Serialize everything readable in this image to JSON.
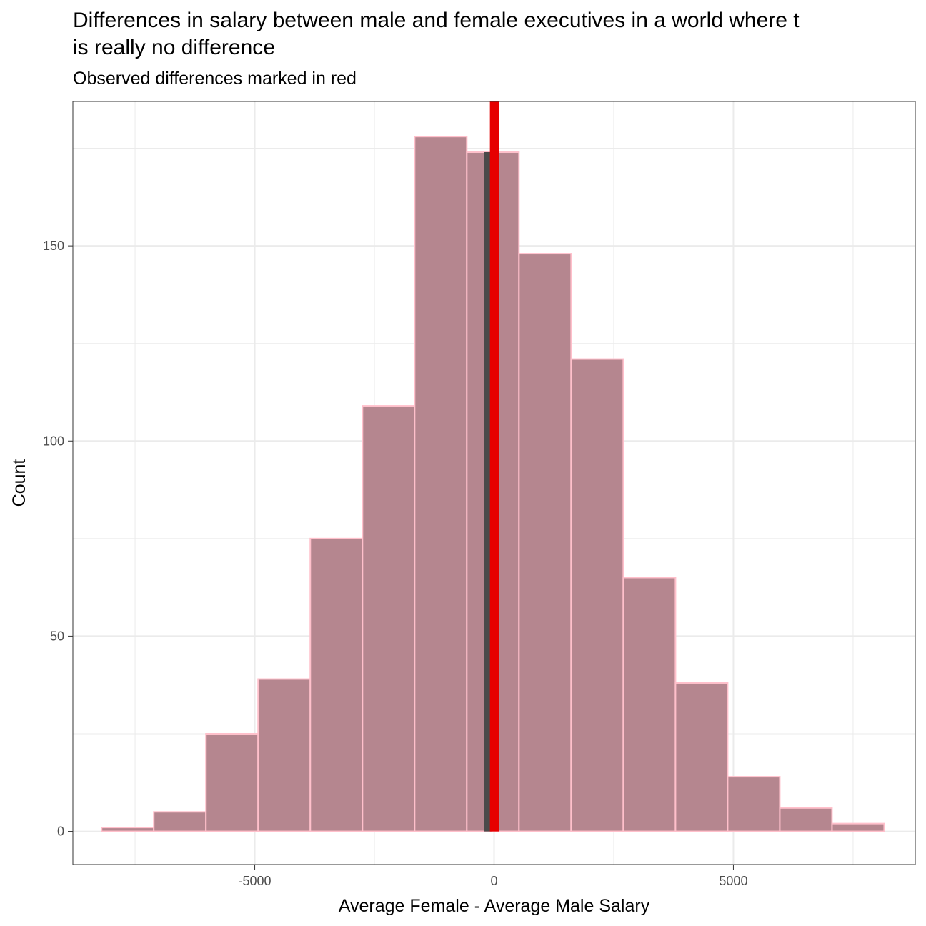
{
  "chart_data": {
    "type": "bar",
    "title_lines": [
      "Differences in salary between male and female executives in a world where t",
      "is really no difference"
    ],
    "subtitle": "Observed differences marked in red",
    "xlabel": "Average Female - Average Male Salary",
    "ylabel": "Count",
    "xlim": [
      -8800,
      8800
    ],
    "ylim": [
      -8.5,
      187
    ],
    "x_ticks": [
      {
        "value": -5000,
        "label": "-5000"
      },
      {
        "value": 0,
        "label": "0"
      },
      {
        "value": 5000,
        "label": "5000"
      }
    ],
    "y_ticks": [
      {
        "value": 0,
        "label": "0"
      },
      {
        "value": 50,
        "label": "50"
      },
      {
        "value": 100,
        "label": "100"
      },
      {
        "value": 150,
        "label": "150"
      }
    ],
    "x_minor": [
      -7500,
      -2500,
      2500,
      7500
    ],
    "y_minor": [
      25,
      75,
      125,
      175
    ],
    "bins": [
      {
        "x0": -8200,
        "x1": -7110,
        "count": 1
      },
      {
        "x0": -7110,
        "x1": -6020,
        "count": 5
      },
      {
        "x0": -6020,
        "x1": -4930,
        "count": 25
      },
      {
        "x0": -4930,
        "x1": -3840,
        "count": 39
      },
      {
        "x0": -3840,
        "x1": -2750,
        "count": 75
      },
      {
        "x0": -2750,
        "x1": -1660,
        "count": 109
      },
      {
        "x0": -1660,
        "x1": -570,
        "count": 178
      },
      {
        "x0": -570,
        "x1": 520,
        "count": 174
      },
      {
        "x0": 520,
        "x1": 1610,
        "count": 148
      },
      {
        "x0": 1610,
        "x1": 2700,
        "count": 121
      },
      {
        "x0": 2700,
        "x1": 3790,
        "count": 65
      },
      {
        "x0": 3790,
        "x1": 4880,
        "count": 38
      },
      {
        "x0": 4880,
        "x1": 5970,
        "count": 14
      },
      {
        "x0": 5970,
        "x1": 7060,
        "count": 6
      },
      {
        "x0": 7060,
        "x1": 8150,
        "count": 2
      }
    ],
    "reference_lines": [
      {
        "name": "dark-line",
        "x": -130,
        "y_top": 174,
        "color": "#4a4a4a"
      },
      {
        "name": "observed-difference-line",
        "x": 10,
        "color": "#e60000"
      }
    ],
    "bar_color": "#b5868f",
    "bar_edge_color": "#ffc0cb",
    "grid": true
  }
}
